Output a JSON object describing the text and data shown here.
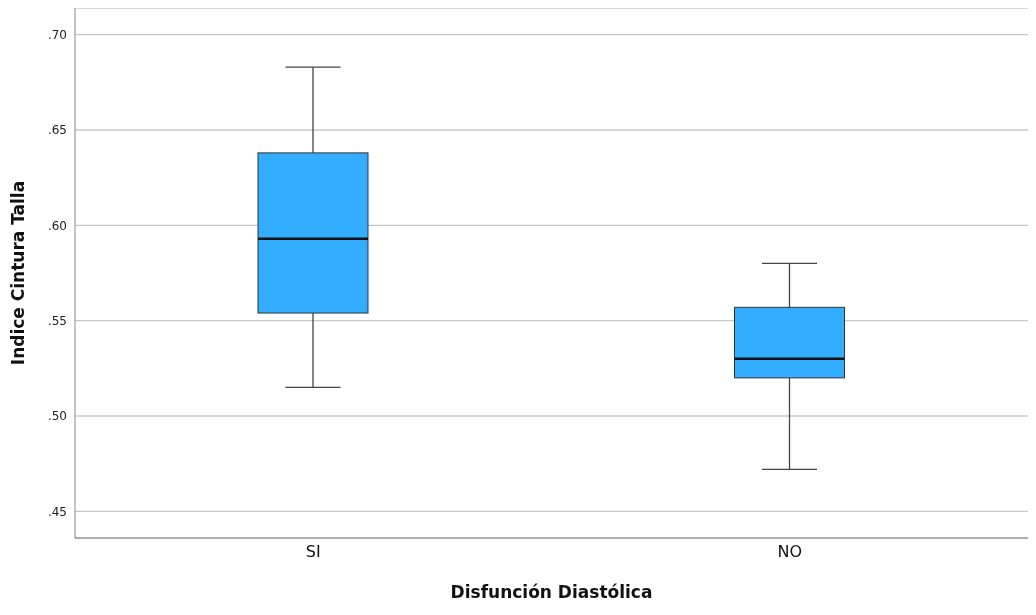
{
  "chart_data": {
    "type": "box",
    "xlabel": "Disfunción Diastólica",
    "ylabel": "Indice Cintura Talla",
    "categories": [
      "SI",
      "NO"
    ],
    "color": "#33adff",
    "boxes": [
      {
        "low": 0.515,
        "q1": 0.554,
        "median": 0.593,
        "q3": 0.638,
        "high": 0.683
      },
      {
        "low": 0.472,
        "q1": 0.52,
        "median": 0.53,
        "q3": 0.557,
        "high": 0.58
      }
    ],
    "ylim": [
      0.436,
      0.714
    ],
    "yticks": [
      {
        "value": 0.45,
        "label": ".45"
      },
      {
        "value": 0.5,
        "label": ".50"
      },
      {
        "value": 0.55,
        "label": ".55"
      },
      {
        "value": 0.6,
        "label": ".60"
      },
      {
        "value": 0.65,
        "label": ".65"
      },
      {
        "value": 0.7,
        "label": ".70"
      }
    ],
    "grid": "y"
  }
}
